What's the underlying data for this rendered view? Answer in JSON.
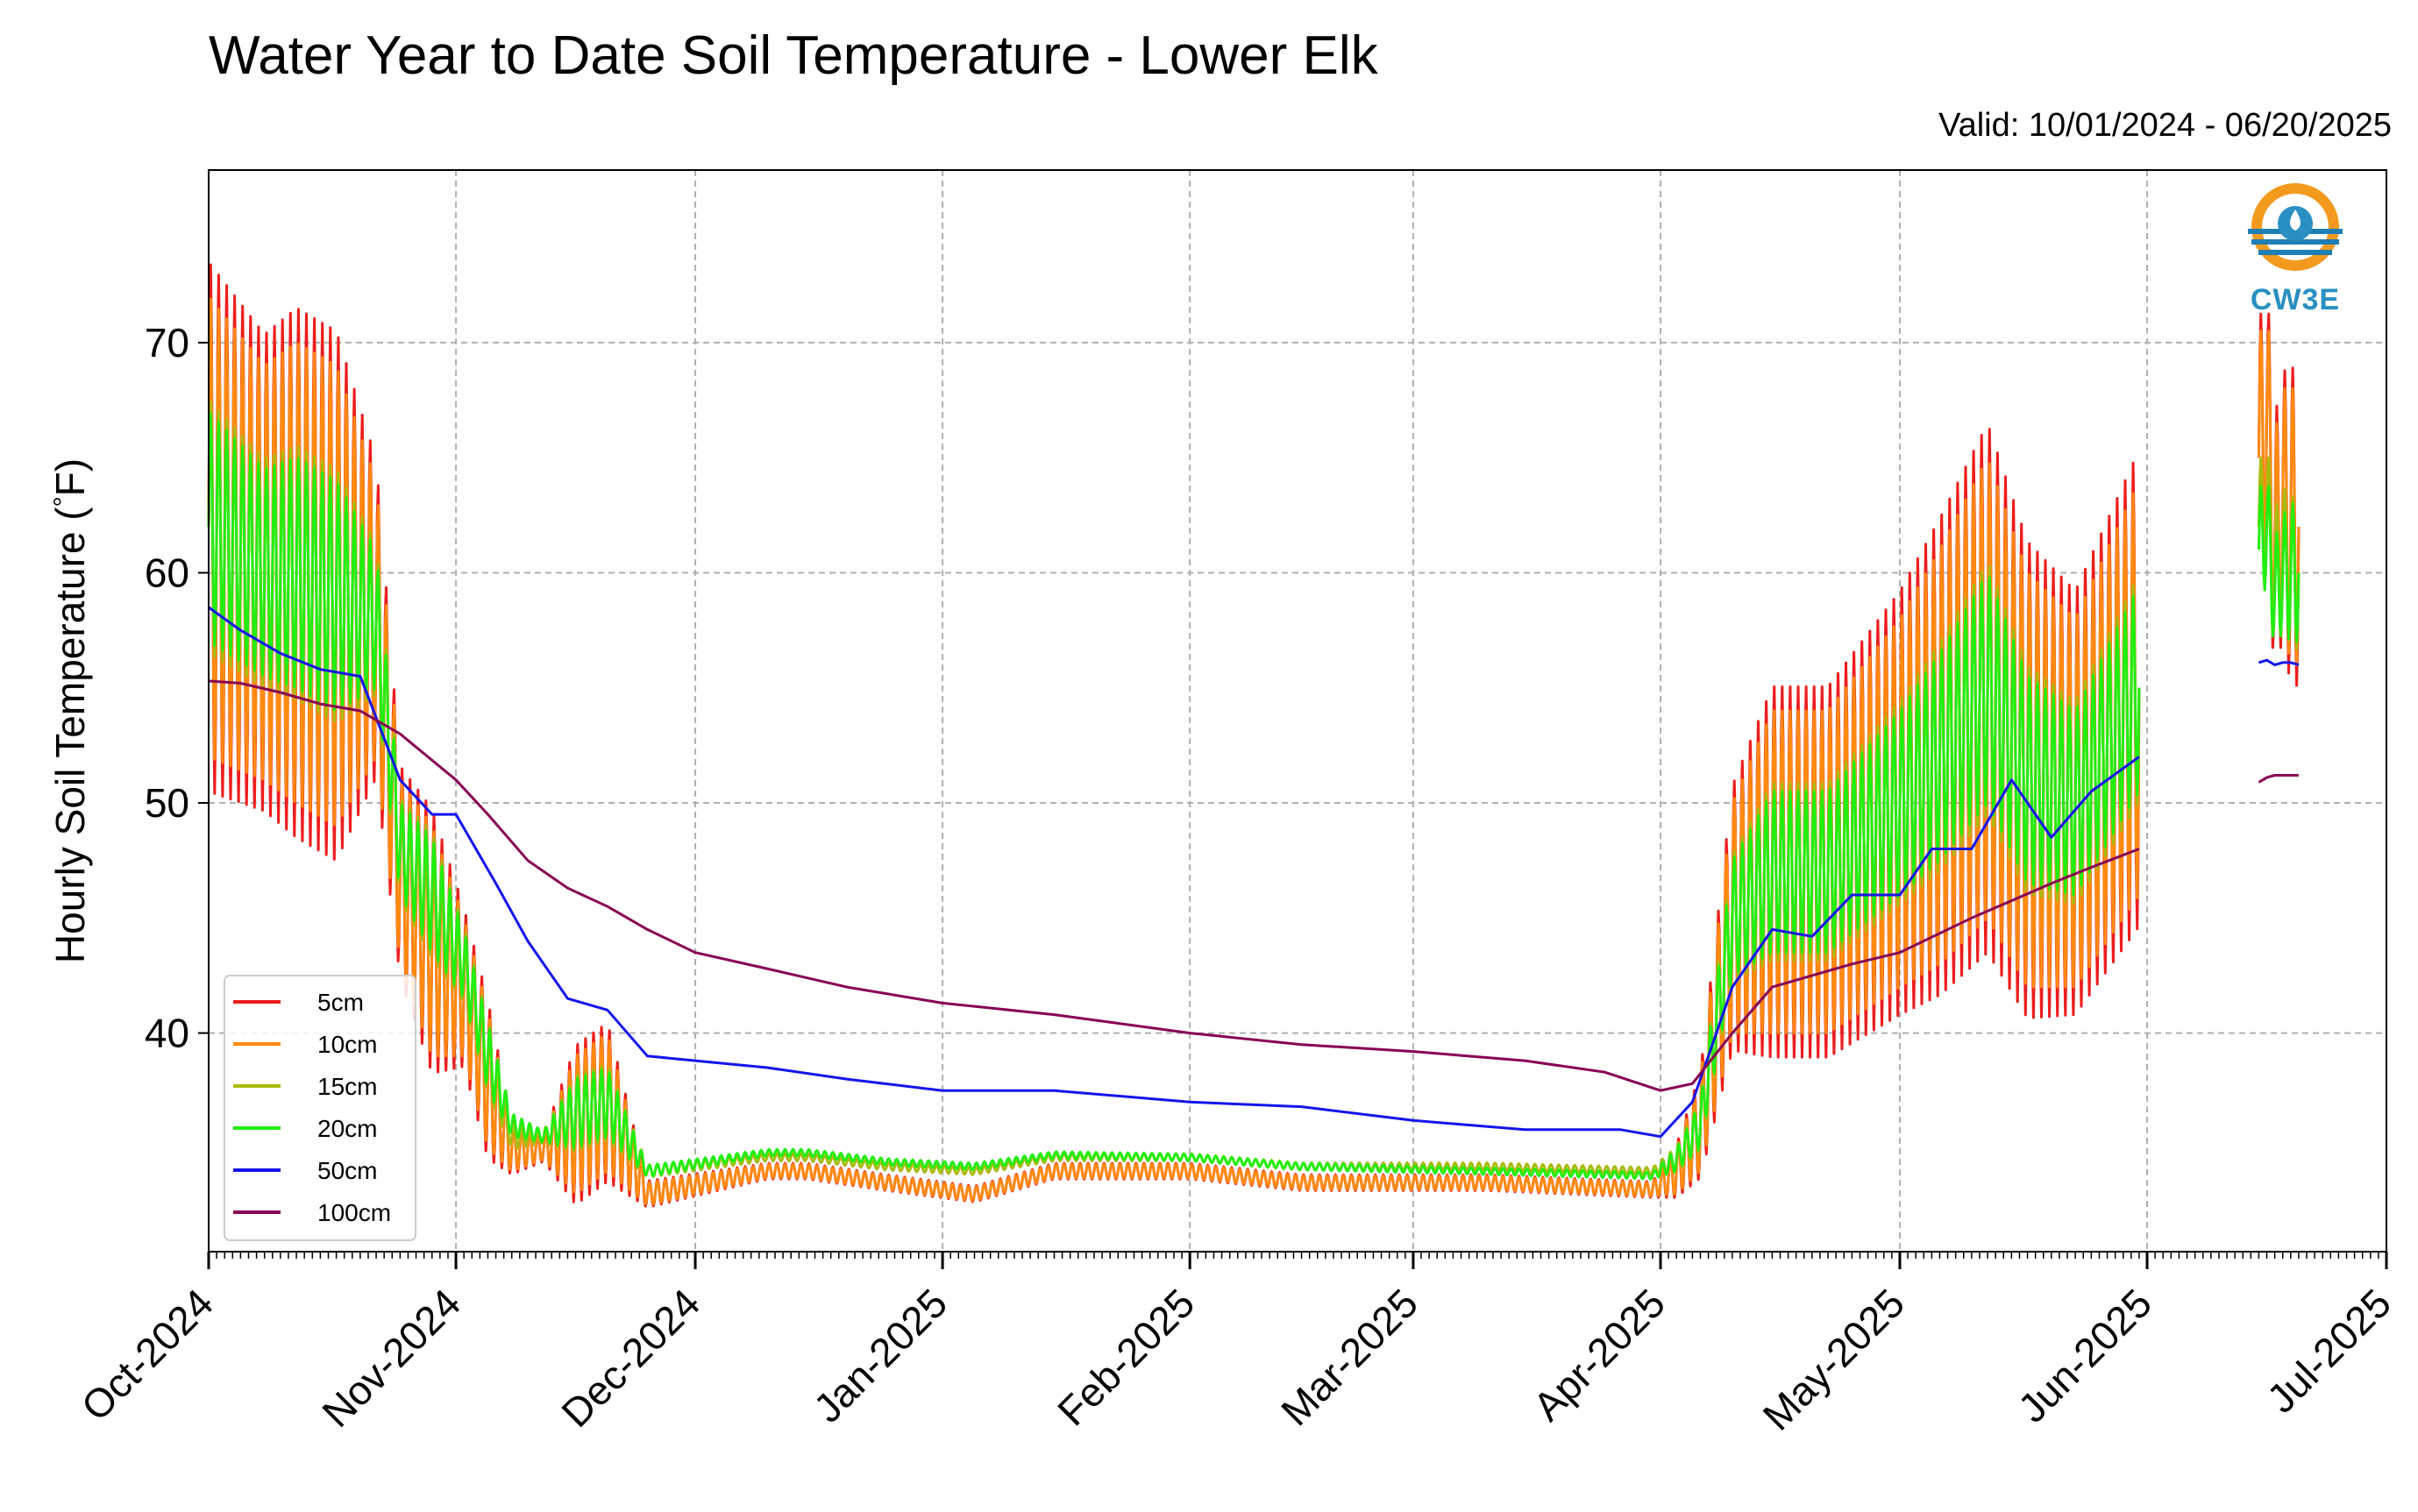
{
  "header": {
    "title": "Water Year to Date Soil Temperature - Lower Elk",
    "valid": "Valid: 10/01/2024 - 06/20/2025"
  },
  "logo": {
    "text": "CW3E",
    "icon": "cw3e-logo-icon"
  },
  "chart_data": {
    "type": "line",
    "title": "Water Year to Date Soil Temperature - Lower Elk",
    "xlabel": "",
    "ylabel": "Hourly Soil Temperature (°F)",
    "ylabel_parts": [
      "Hourly Soil Temperature (",
      "°",
      "F)"
    ],
    "xlim": [
      "2024-10-01",
      "2025-07-01"
    ],
    "ylim": [
      30.5,
      77.5
    ],
    "y_ticks": [
      40,
      50,
      60,
      70
    ],
    "x_ticks": [
      "2024-10-01",
      "2024-11-01",
      "2024-12-01",
      "2025-01-01",
      "2025-02-01",
      "2025-03-01",
      "2025-04-01",
      "2025-05-01",
      "2025-06-01",
      "2025-07-01"
    ],
    "x_tick_labels": [
      "Oct-2024",
      "Nov-2024",
      "Dec-2024",
      "Jan-2025",
      "Feb-2025",
      "Mar-2025",
      "Apr-2025",
      "May-2025",
      "Jun-2025",
      "Jul-2025"
    ],
    "grid": true,
    "legend_position": "lower-left",
    "series": [
      {
        "name": "5cm",
        "color": "#ee1c1c",
        "width": 3,
        "amp_scale": 1.15,
        "diurnal": true,
        "segments": [
          {
            "x": [
              "2024-10-01",
              "2024-10-08",
              "2024-10-12",
              "2024-10-17",
              "2024-10-22",
              "2024-10-25",
              "2024-10-29",
              "2024-11-02",
              "2024-11-05",
              "2024-11-08",
              "2024-11-12",
              "2024-11-16",
              "2024-11-20",
              "2024-11-25",
              "2024-12-10",
              "2024-12-15",
              "2024-12-25",
              "2025-01-05",
              "2025-01-15",
              "2025-02-01",
              "2025-02-15",
              "2025-03-10",
              "2025-03-31",
              "2025-04-03",
              "2025-04-06",
              "2025-04-10",
              "2025-04-15",
              "2025-04-22",
              "2025-05-01",
              "2025-05-06",
              "2025-05-12",
              "2025-05-17",
              "2025-05-23",
              "2025-05-31"
            ],
            "y": [
              62,
              60,
              60,
              59,
              58,
              47,
              44,
              42,
              38,
              35,
              35,
              36,
              37,
              33,
              34,
              34,
              33.5,
              33,
              34,
              34,
              33.5,
              33.5,
              33.2,
              34,
              36,
              45,
              47,
              47,
              50,
              52,
              55,
              51,
              50,
              55
            ],
            "amp": [
              10,
              9,
              10,
              10,
              6,
              4,
              5,
              3,
              3,
              1,
              0.5,
              3,
              3,
              0.5,
              0.3,
              0.3,
              0.3,
              0.3,
              0.3,
              0.3,
              0.3,
              0.3,
              0.3,
              1,
              2,
              5,
              7,
              7,
              8,
              9,
              10,
              9,
              8,
              9
            ]
          },
          {
            "x": [
              "2025-06-15",
              "2025-06-16",
              "2025-06-17",
              "2025-06-18",
              "2025-06-19",
              "2025-06-20"
            ],
            "y": [
              65,
              67,
              61,
              63,
              62,
              62
            ],
            "amp": [
              5,
              5,
              5,
              5,
              6,
              6
            ]
          }
        ]
      },
      {
        "name": "10cm",
        "color": "#ff8a10",
        "width": 3,
        "amp_scale": 1.0,
        "diurnal": true,
        "segments": [
          {
            "x": [
              "2024-10-01",
              "2024-10-08",
              "2024-10-12",
              "2024-10-17",
              "2024-10-22",
              "2024-10-25",
              "2024-10-29",
              "2024-11-02",
              "2024-11-05",
              "2024-11-08",
              "2024-11-12",
              "2024-11-16",
              "2024-11-20",
              "2024-11-25",
              "2024-12-10",
              "2024-12-15",
              "2024-12-25",
              "2025-01-05",
              "2025-01-15",
              "2025-02-01",
              "2025-02-15",
              "2025-03-10",
              "2025-03-31",
              "2025-04-03",
              "2025-04-06",
              "2025-04-10",
              "2025-04-15",
              "2025-04-22",
              "2025-05-01",
              "2025-05-06",
              "2025-05-12",
              "2025-05-17",
              "2025-05-23",
              "2025-05-31"
            ],
            "y": [
              62,
              60,
              60,
              59,
              58,
              47,
              44,
              42,
              38,
              35,
              35,
              36,
              37,
              33,
              34,
              34,
              33.5,
              33,
              34,
              34,
              33.5,
              33.5,
              33.2,
              34,
              36,
              45,
              47,
              47,
              50,
              52,
              55,
              51,
              50,
              55
            ],
            "amp": [
              10,
              9,
              10,
              10,
              6,
              4,
              5,
              3,
              3,
              1,
              0.5,
              3,
              3,
              0.5,
              0.3,
              0.3,
              0.3,
              0.3,
              0.3,
              0.3,
              0.3,
              0.3,
              0.3,
              1,
              2,
              5,
              7,
              7,
              8,
              9,
              10,
              9,
              8,
              9
            ]
          },
          {
            "x": [
              "2025-06-15",
              "2025-06-16",
              "2025-06-17",
              "2025-06-18",
              "2025-06-19",
              "2025-06-20"
            ],
            "y": [
              65,
              67,
              61,
              63,
              62,
              62
            ],
            "amp": [
              5,
              5,
              5,
              5,
              6,
              6
            ]
          }
        ]
      },
      {
        "name": "15cm",
        "color": "#aabb10",
        "width": 3,
        "amp_scale": 0.55,
        "diurnal": true,
        "segments": [
          {
            "x": [
              "2024-10-01",
              "2024-10-08",
              "2024-10-12",
              "2024-10-17",
              "2024-10-22",
              "2024-10-25",
              "2024-10-29",
              "2024-11-02",
              "2024-11-05",
              "2024-11-08",
              "2024-11-12",
              "2024-11-16",
              "2024-11-20",
              "2024-11-25",
              "2024-12-10",
              "2024-12-15",
              "2024-12-25",
              "2025-01-05",
              "2025-01-15",
              "2025-02-01",
              "2025-02-15",
              "2025-03-10",
              "2025-03-31",
              "2025-04-03",
              "2025-04-06",
              "2025-04-10",
              "2025-04-15",
              "2025-04-22",
              "2025-05-01",
              "2025-05-06",
              "2025-05-12",
              "2025-05-17",
              "2025-05-23",
              "2025-05-31"
            ],
            "y": [
              62,
              60,
              60,
              59,
              58,
              48,
              46,
              43,
              39,
              35.5,
              35.5,
              36.5,
              37,
              34,
              34.6,
              34.6,
              34.2,
              34,
              34.6,
              34.6,
              34.2,
              34.2,
              34,
              34.5,
              36,
              45,
              47,
              47,
              50,
              52,
              55,
              51,
              50,
              55
            ],
            "amp": [
              10,
              9,
              10,
              10,
              6,
              4,
              5,
              3,
              3,
              1,
              0.5,
              3,
              3,
              0.5,
              0.3,
              0.3,
              0.3,
              0.3,
              0.3,
              0.3,
              0.3,
              0.3,
              0.3,
              1,
              2,
              5,
              7,
              7,
              8,
              9,
              10,
              9,
              8,
              9
            ]
          },
          {
            "x": [
              "2025-06-15",
              "2025-06-16",
              "2025-06-17",
              "2025-06-18",
              "2025-06-19",
              "2025-06-20"
            ],
            "y": [
              62,
              63,
              60,
              61,
              60,
              60
            ],
            "amp": [
              5,
              5,
              5,
              5,
              6,
              6
            ]
          }
        ]
      },
      {
        "name": "20cm",
        "color": "#22ee11",
        "width": 3,
        "amp_scale": 0.5,
        "diurnal": true,
        "segments": [
          {
            "x": [
              "2024-10-01",
              "2024-10-08",
              "2024-10-12",
              "2024-10-17",
              "2024-10-22",
              "2024-10-25",
              "2024-10-29",
              "2024-11-02",
              "2024-11-05",
              "2024-11-08",
              "2024-11-12",
              "2024-11-16",
              "2024-11-20",
              "2024-11-25",
              "2024-12-10",
              "2024-12-15",
              "2024-12-25",
              "2025-01-05",
              "2025-01-15",
              "2025-02-01",
              "2025-02-15",
              "2025-03-10",
              "2025-03-31",
              "2025-04-03",
              "2025-04-06",
              "2025-04-10",
              "2025-04-15",
              "2025-04-22",
              "2025-05-01",
              "2025-05-06",
              "2025-05-12",
              "2025-05-17",
              "2025-05-23",
              "2025-05-31"
            ],
            "y": [
              62,
              60,
              60,
              59,
              58,
              48,
              46,
              43,
              39,
              36,
              35.5,
              36.5,
              37,
              34,
              34.8,
              34.8,
              34.4,
              34.2,
              34.7,
              34.6,
              34.2,
              34,
              33.8,
              34.5,
              36,
              45,
              47,
              47,
              50,
              52,
              55,
              51,
              50,
              55
            ],
            "amp": [
              10,
              9,
              10,
              10,
              6,
              4,
              5,
              3,
              3,
              1,
              0.5,
              3,
              3,
              0.5,
              0.3,
              0.3,
              0.3,
              0.3,
              0.3,
              0.3,
              0.3,
              0.3,
              0.3,
              1,
              2,
              5,
              7,
              7,
              8,
              9,
              10,
              9,
              8,
              9
            ]
          },
          {
            "x": [
              "2025-06-15",
              "2025-06-16",
              "2025-06-17",
              "2025-06-18",
              "2025-06-19",
              "2025-06-20"
            ],
            "y": [
              61,
              62,
              59,
              60,
              60,
              60
            ],
            "amp": [
              5,
              5,
              5,
              5,
              6,
              6
            ]
          }
        ]
      },
      {
        "name": "50cm",
        "color": "#1414ee",
        "width": 3,
        "diurnal": false,
        "segments": [
          {
            "x": [
              "2024-10-01",
              "2024-10-05",
              "2024-10-10",
              "2024-10-15",
              "2024-10-20",
              "2024-10-25",
              "2024-10-29",
              "2024-11-01",
              "2024-11-06",
              "2024-11-10",
              "2024-11-15",
              "2024-11-20",
              "2024-11-25",
              "2024-12-01",
              "2024-12-10",
              "2024-12-20",
              "2025-01-01",
              "2025-01-15",
              "2025-02-01",
              "2025-02-15",
              "2025-03-01",
              "2025-03-15",
              "2025-03-27",
              "2025-04-01",
              "2025-04-05",
              "2025-04-10",
              "2025-04-15",
              "2025-04-20",
              "2025-04-25",
              "2025-05-01",
              "2025-05-05",
              "2025-05-10",
              "2025-05-15",
              "2025-05-20",
              "2025-05-25",
              "2025-05-31"
            ],
            "y": [
              58.5,
              57.5,
              56.5,
              55.8,
              55.5,
              51,
              49.5,
              49.5,
              46.5,
              44,
              41.5,
              41,
              39,
              38.8,
              38.5,
              38,
              37.5,
              37.5,
              37,
              36.8,
              36.2,
              35.8,
              35.8,
              35.5,
              37,
              42,
              44.5,
              44.2,
              46,
              46,
              48,
              48,
              51,
              48.5,
              50.5,
              52
            ]
          },
          {
            "x": [
              "2025-06-15",
              "2025-06-16",
              "2025-06-17",
              "2025-06-18",
              "2025-06-19",
              "2025-06-20"
            ],
            "y": [
              56.1,
              56.2,
              56.0,
              56.1,
              56.1,
              56.0
            ]
          }
        ]
      },
      {
        "name": "100cm",
        "color": "#880055",
        "width": 3,
        "diurnal": false,
        "segments": [
          {
            "x": [
              "2024-10-01",
              "2024-10-05",
              "2024-10-10",
              "2024-10-15",
              "2024-10-20",
              "2024-10-25",
              "2024-11-01",
              "2024-11-05",
              "2024-11-10",
              "2024-11-15",
              "2024-11-20",
              "2024-11-25",
              "2024-12-01",
              "2024-12-10",
              "2024-12-20",
              "2025-01-01",
              "2025-01-15",
              "2025-02-01",
              "2025-02-15",
              "2025-03-01",
              "2025-03-15",
              "2025-03-25",
              "2025-04-01",
              "2025-04-05",
              "2025-04-10",
              "2025-04-15",
              "2025-04-20",
              "2025-04-25",
              "2025-05-01",
              "2025-05-10",
              "2025-05-20",
              "2025-05-25",
              "2025-05-31"
            ],
            "y": [
              55.3,
              55.2,
              54.8,
              54.3,
              54.0,
              53,
              51,
              49.5,
              47.5,
              46.3,
              45.5,
              44.5,
              43.5,
              42.8,
              42,
              41.3,
              40.8,
              40,
              39.5,
              39.2,
              38.8,
              38.3,
              37.5,
              37.8,
              40,
              42,
              42.5,
              43,
              43.5,
              45,
              46.5,
              47.2,
              48
            ]
          },
          {
            "x": [
              "2025-06-15",
              "2025-06-16",
              "2025-06-17",
              "2025-06-18",
              "2025-06-19",
              "2025-06-20"
            ],
            "y": [
              50.9,
              51.1,
              51.2,
              51.2,
              51.2,
              51.2
            ]
          }
        ]
      }
    ]
  }
}
